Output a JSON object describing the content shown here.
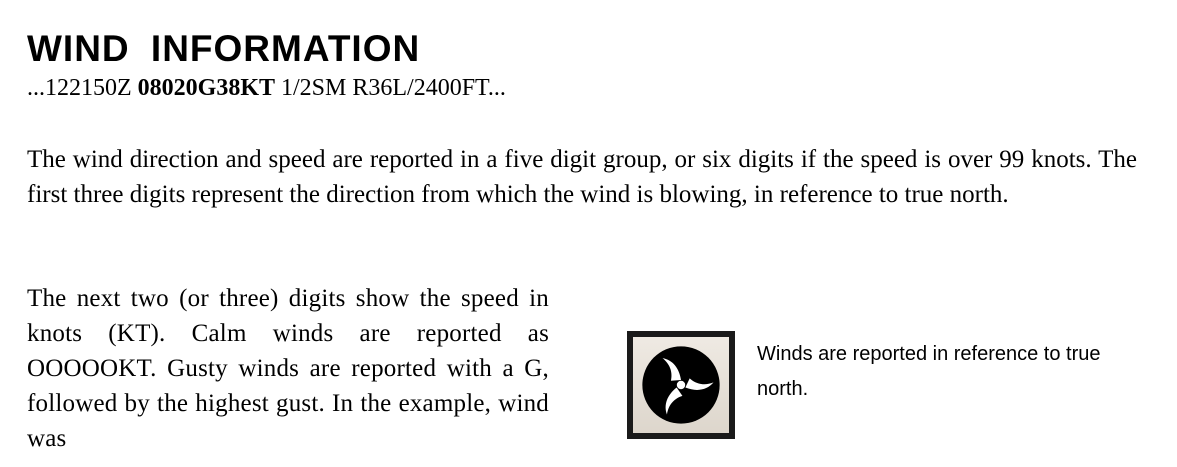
{
  "heading": {
    "title": "WIND INFORMATION"
  },
  "metar": {
    "prefix": "...122150Z ",
    "wind_group": "08020G38KT",
    "suffix": " 1/2SM R36L/2400FT..."
  },
  "paragraphs": {
    "first": "The wind direction and speed are reported in a five digit group, or six digits if the speed is over 99 knots. The first three digits represent the direction from which the wind is blowing, in reference to true north.",
    "second": "The next two (or three) digits show the speed in knots (KT). Calm winds are reported as OOOOOKT. Gusty winds are reported with a G, followed by the highest gust. In the example, wind was"
  },
  "sidebar": {
    "icon": "faa-logo-icon",
    "caption": "Winds are reported in reference to true north."
  },
  "colors": {
    "text": "#000000",
    "logo_frame": "#1a1a1a",
    "logo_background": "#e8e2da"
  }
}
